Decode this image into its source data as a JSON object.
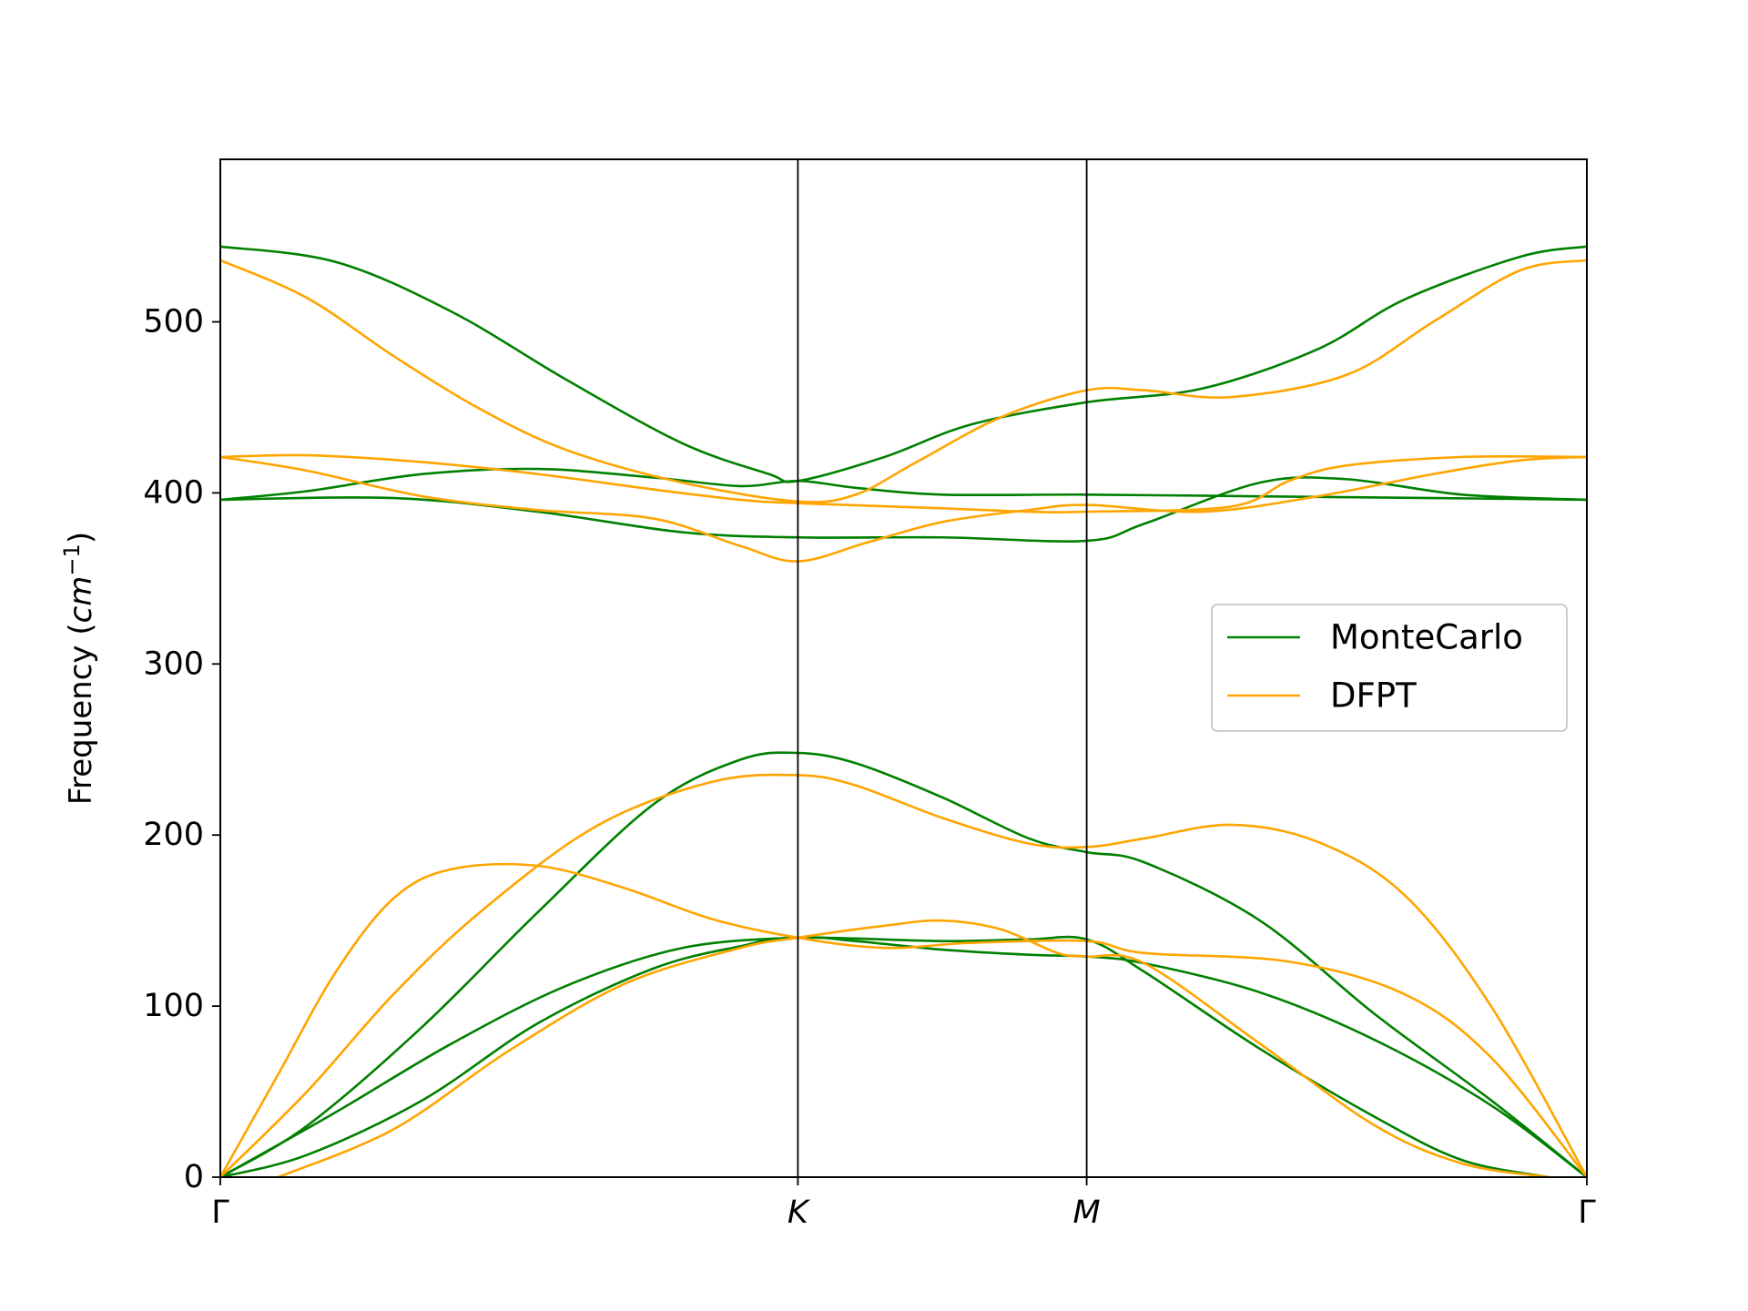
{
  "chart_data": {
    "type": "line",
    "title": "",
    "xlabel": "",
    "ylabel": "Frequency ($cm^{-1}$)",
    "ylabel_parts": {
      "prefix": "Frequency (",
      "base": "cm",
      "sup": "−1",
      "suffix": ")"
    },
    "ylim": [
      0,
      595
    ],
    "xlim": [
      0,
      2.366
    ],
    "y_ticks": [
      0,
      100,
      200,
      300,
      400,
      500
    ],
    "x_ticks": [
      {
        "value": 0,
        "label": "Γ",
        "italic": false
      },
      {
        "value": 1.0,
        "label": "K",
        "italic": true
      },
      {
        "value": 1.5,
        "label": "M",
        "italic": true
      },
      {
        "value": 2.366,
        "label": "Γ",
        "italic": false
      }
    ],
    "vlines": [
      1.0,
      1.5
    ],
    "grid": false,
    "legend": {
      "position": "center-right",
      "entries": [
        {
          "name": "MonteCarlo",
          "color": "#008000"
        },
        {
          "name": "DFPT",
          "color": "#ffa500"
        }
      ]
    },
    "series": [
      {
        "name": "MonteCarlo",
        "color": "#008000",
        "branches": [
          [
            [
              0,
              0
            ],
            [
              0.15,
              13
            ],
            [
              0.35,
              45
            ],
            [
              0.55,
              90
            ],
            [
              0.75,
              122
            ],
            [
              0.9,
              135
            ],
            [
              1.0,
              140
            ],
            [
              1.25,
              138
            ],
            [
              1.4,
              139
            ],
            [
              1.5,
              139
            ],
            [
              1.6,
              120
            ],
            [
              1.8,
              75
            ],
            [
              2.0,
              35
            ],
            [
              2.15,
              10
            ],
            [
              2.3,
              0
            ]
          ],
          [
            [
              0,
              0
            ],
            [
              0.2,
              38
            ],
            [
              0.4,
              78
            ],
            [
              0.6,
              112
            ],
            [
              0.8,
              134
            ],
            [
              1.0,
              140
            ],
            [
              1.1,
              138
            ],
            [
              1.25,
              133
            ],
            [
              1.4,
              130
            ],
            [
              1.5,
              129
            ],
            [
              1.6,
              125
            ],
            [
              1.8,
              108
            ],
            [
              2.0,
              80
            ],
            [
              2.2,
              42
            ],
            [
              2.366,
              0
            ]
          ],
          [
            [
              0,
              0
            ],
            [
              0.15,
              30
            ],
            [
              0.35,
              88
            ],
            [
              0.55,
              155
            ],
            [
              0.75,
              218
            ],
            [
              0.9,
              244
            ],
            [
              1.0,
              248
            ],
            [
              1.1,
              242
            ],
            [
              1.25,
              222
            ],
            [
              1.4,
              198
            ],
            [
              1.5,
              190
            ],
            [
              1.6,
              184
            ],
            [
              1.8,
              150
            ],
            [
              2.0,
              95
            ],
            [
              2.2,
              45
            ],
            [
              2.366,
              0
            ]
          ],
          [
            [
              0,
              396
            ],
            [
              0.3,
              397
            ],
            [
              0.55,
              389
            ],
            [
              0.8,
              377
            ],
            [
              1.0,
              374
            ],
            [
              1.25,
              374
            ],
            [
              1.5,
              372
            ],
            [
              1.6,
              382
            ],
            [
              1.8,
              406
            ],
            [
              1.95,
              408
            ],
            [
              2.15,
              399
            ],
            [
              2.366,
              396
            ]
          ],
          [
            [
              0,
              396
            ],
            [
              0.15,
              401
            ],
            [
              0.35,
              411
            ],
            [
              0.55,
              414
            ],
            [
              0.75,
              409
            ],
            [
              0.9,
              404
            ],
            [
              1.0,
              407
            ],
            [
              1.1,
              403
            ],
            [
              1.25,
              399
            ],
            [
              1.5,
              399
            ],
            [
              1.8,
              398
            ],
            [
              2.1,
              397
            ],
            [
              2.366,
              396
            ]
          ],
          [
            [
              0,
              544
            ],
            [
              0.2,
              535
            ],
            [
              0.4,
              506
            ],
            [
              0.6,
              466
            ],
            [
              0.8,
              429
            ],
            [
              0.95,
              411
            ],
            [
              1.0,
              407
            ],
            [
              1.15,
              421
            ],
            [
              1.3,
              440
            ],
            [
              1.5,
              453
            ],
            [
              1.7,
              461
            ],
            [
              1.9,
              484
            ],
            [
              2.05,
              513
            ],
            [
              2.25,
              538
            ],
            [
              2.366,
              544
            ]
          ]
        ]
      },
      {
        "name": "DFPT",
        "color": "#ffa500",
        "branches": [
          [
            [
              0.1,
              0
            ],
            [
              0.3,
              28
            ],
            [
              0.5,
              74
            ],
            [
              0.7,
              113
            ],
            [
              0.9,
              134
            ],
            [
              1.0,
              140
            ],
            [
              1.15,
              147
            ],
            [
              1.25,
              150
            ],
            [
              1.35,
              145
            ],
            [
              1.45,
              131
            ],
            [
              1.5,
              129
            ],
            [
              1.6,
              125
            ],
            [
              1.8,
              78
            ],
            [
              2.0,
              30
            ],
            [
              2.15,
              8
            ],
            [
              2.3,
              0
            ]
          ],
          [
            [
              0,
              0
            ],
            [
              0.15,
              50
            ],
            [
              0.3,
              107
            ],
            [
              0.45,
              155
            ],
            [
              0.65,
              205
            ],
            [
              0.85,
              231
            ],
            [
              1.0,
              235
            ],
            [
              1.1,
              229
            ],
            [
              1.25,
              210
            ],
            [
              1.4,
              195
            ],
            [
              1.5,
              193
            ],
            [
              1.6,
              198
            ],
            [
              1.75,
              206
            ],
            [
              1.9,
              196
            ],
            [
              2.05,
              165
            ],
            [
              2.2,
              100
            ],
            [
              2.366,
              0
            ]
          ],
          [
            [
              0,
              0
            ],
            [
              0.1,
              60
            ],
            [
              0.2,
              120
            ],
            [
              0.3,
              163
            ],
            [
              0.4,
              180
            ],
            [
              0.55,
              182
            ],
            [
              0.7,
              169
            ],
            [
              0.85,
              151
            ],
            [
              1.0,
              140
            ],
            [
              1.15,
              134
            ],
            [
              1.3,
              137
            ],
            [
              1.5,
              138
            ],
            [
              1.6,
              131
            ],
            [
              1.85,
              126
            ],
            [
              2.05,
              107
            ],
            [
              2.2,
              70
            ],
            [
              2.366,
              0
            ]
          ],
          [
            [
              0,
              421
            ],
            [
              0.15,
              413
            ],
            [
              0.35,
              398
            ],
            [
              0.55,
              390
            ],
            [
              0.75,
              385
            ],
            [
              0.9,
              369
            ],
            [
              1.0,
              360
            ],
            [
              1.12,
              371
            ],
            [
              1.25,
              383
            ],
            [
              1.4,
              390
            ],
            [
              1.5,
              393
            ],
            [
              1.7,
              389
            ],
            [
              1.9,
              398
            ],
            [
              2.1,
              411
            ],
            [
              2.25,
              419
            ],
            [
              2.366,
              421
            ]
          ],
          [
            [
              0,
              421
            ],
            [
              0.15,
              422
            ],
            [
              0.35,
              418
            ],
            [
              0.55,
              411
            ],
            [
              0.75,
              402
            ],
            [
              0.9,
              396
            ],
            [
              1.0,
              394
            ],
            [
              1.25,
              391
            ],
            [
              1.4,
              389
            ],
            [
              1.5,
              389
            ],
            [
              1.75,
              392
            ],
            [
              1.85,
              407
            ],
            [
              1.95,
              416
            ],
            [
              2.15,
              421
            ],
            [
              2.366,
              421
            ]
          ],
          [
            [
              0,
              536
            ],
            [
              0.15,
              514
            ],
            [
              0.3,
              480
            ],
            [
              0.45,
              449
            ],
            [
              0.6,
              425
            ],
            [
              0.8,
              406
            ],
            [
              1.0,
              395
            ],
            [
              1.1,
              399
            ],
            [
              1.2,
              417
            ],
            [
              1.35,
              444
            ],
            [
              1.5,
              460
            ],
            [
              1.6,
              460
            ],
            [
              1.75,
              456
            ],
            [
              1.95,
              469
            ],
            [
              2.1,
              500
            ],
            [
              2.25,
              530
            ],
            [
              2.366,
              536
            ]
          ]
        ]
      }
    ]
  }
}
